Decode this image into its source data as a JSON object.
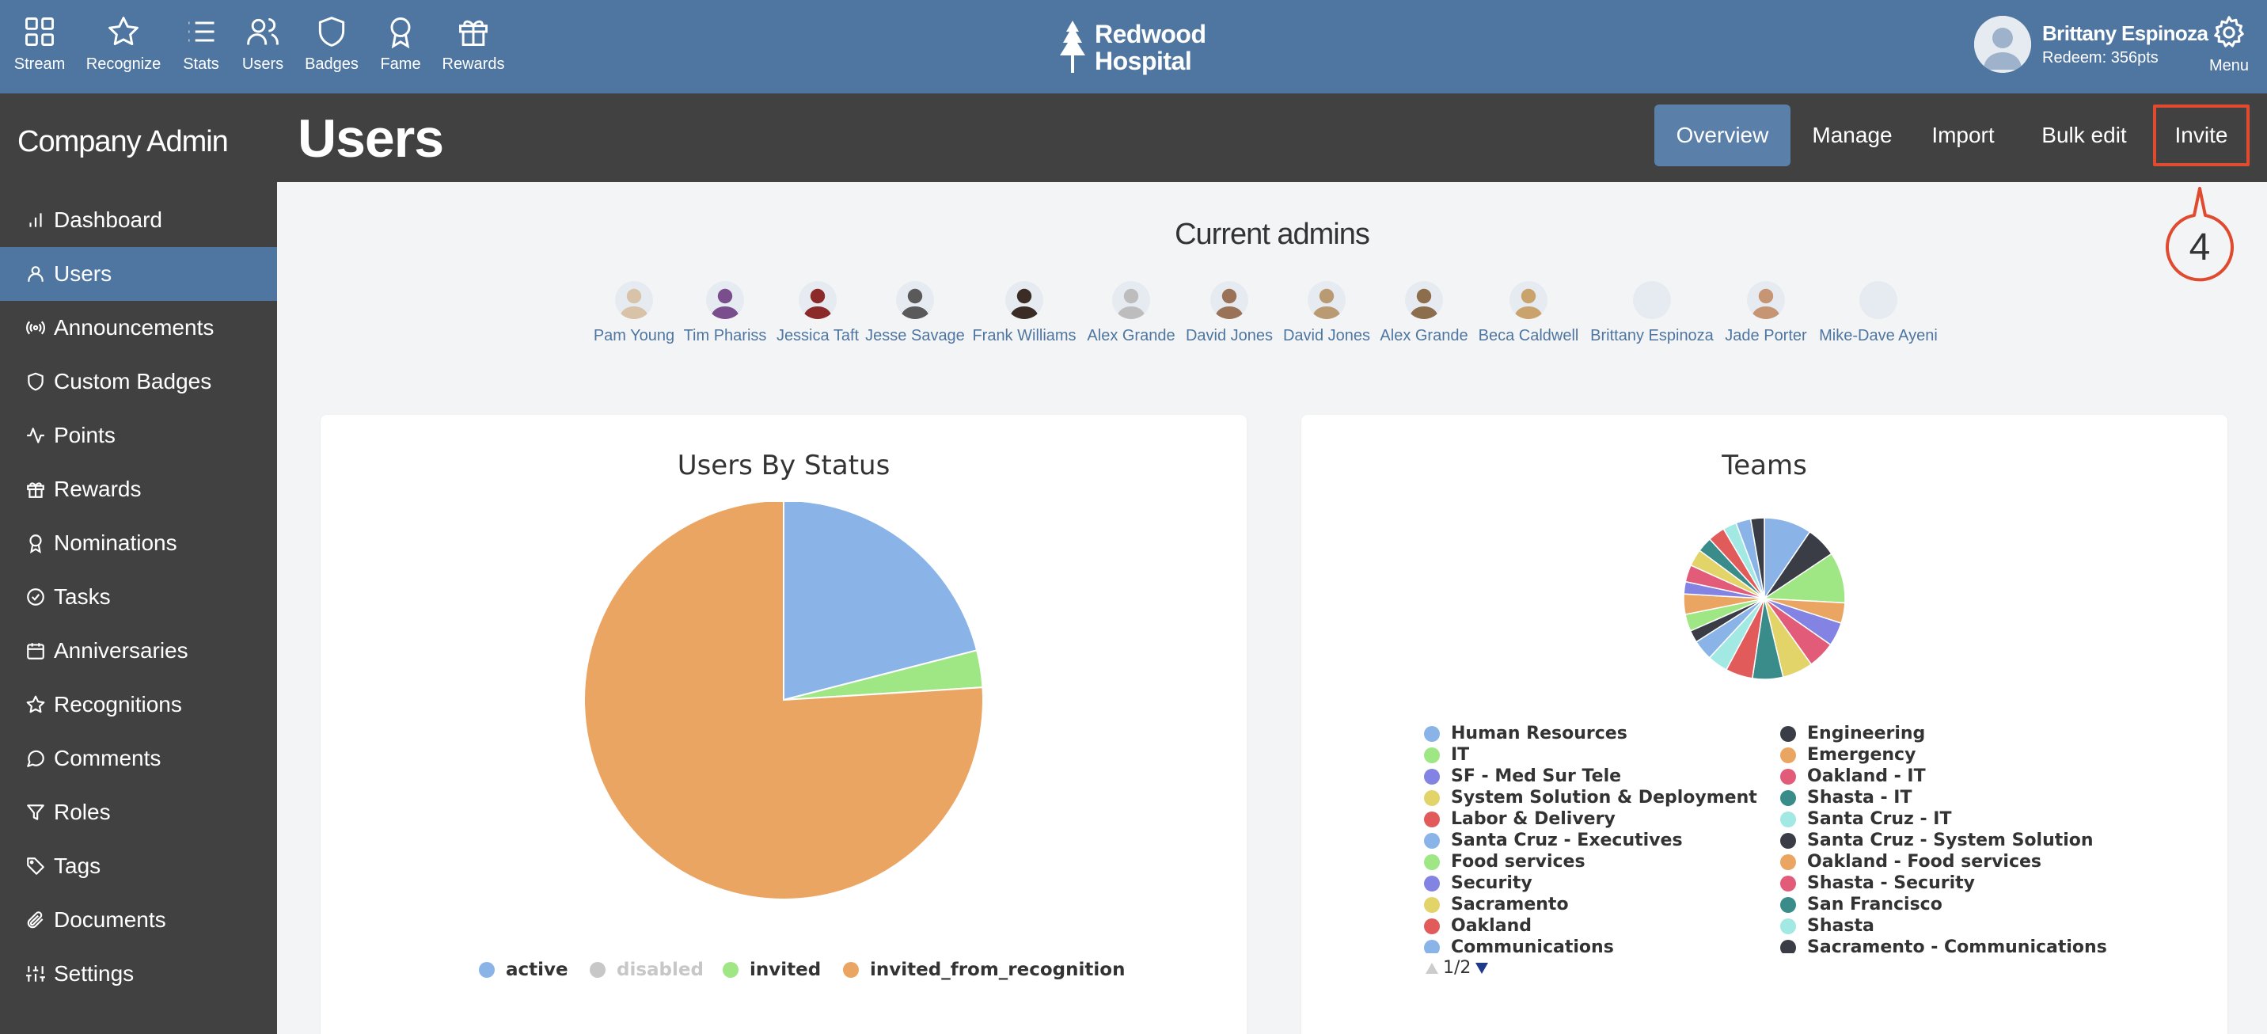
{
  "nav": [
    {
      "label": "Stream",
      "icon": "grid-icon"
    },
    {
      "label": "Recognize",
      "icon": "star-icon"
    },
    {
      "label": "Stats",
      "icon": "list-icon"
    },
    {
      "label": "Users",
      "icon": "users-icon"
    },
    {
      "label": "Badges",
      "icon": "shield-icon"
    },
    {
      "label": "Fame",
      "icon": "award-icon"
    },
    {
      "label": "Rewards",
      "icon": "gift-icon"
    }
  ],
  "brand": {
    "line1": "Redwood",
    "line2": "Hospital",
    "icon": "tree-icon"
  },
  "user": {
    "name": "Brittany Espinoza",
    "redeem": "Redeem: 356pts"
  },
  "menu": {
    "label": "Menu",
    "icon": "gear-icon"
  },
  "sidebar": {
    "title": "Company Admin",
    "items": [
      {
        "label": "Dashboard",
        "icon": "bar-chart-icon"
      },
      {
        "label": "Users",
        "icon": "user-icon",
        "active": true
      },
      {
        "label": "Announcements",
        "icon": "broadcast-icon"
      },
      {
        "label": "Custom Badges",
        "icon": "shield-icon"
      },
      {
        "label": "Points",
        "icon": "activity-icon"
      },
      {
        "label": "Rewards",
        "icon": "gift-icon"
      },
      {
        "label": "Nominations",
        "icon": "award-icon"
      },
      {
        "label": "Tasks",
        "icon": "check-circle-icon"
      },
      {
        "label": "Anniversaries",
        "icon": "calendar-icon"
      },
      {
        "label": "Recognitions",
        "icon": "star-icon"
      },
      {
        "label": "Comments",
        "icon": "comment-icon"
      },
      {
        "label": "Roles",
        "icon": "filter-icon"
      },
      {
        "label": "Tags",
        "icon": "tag-icon"
      },
      {
        "label": "Documents",
        "icon": "paperclip-icon"
      },
      {
        "label": "Settings",
        "icon": "sliders-icon"
      }
    ]
  },
  "header": {
    "title": "Users",
    "tabs": [
      {
        "label": "Overview",
        "active": true
      },
      {
        "label": "Manage"
      },
      {
        "label": "Import"
      },
      {
        "label": "Bulk edit"
      },
      {
        "label": "Invite",
        "highlighted": true
      }
    ]
  },
  "callout": {
    "number": "4",
    "color": "#e04a2e"
  },
  "admins": {
    "title": "Current admins",
    "people": [
      "Pam Young",
      "Tim Phariss",
      "Jessica Taft",
      "Jesse Savage",
      "Frank Williams",
      "Alex Grande",
      "David Jones",
      "David Jones",
      "Alex Grande",
      "Beca Caldwell",
      "Brittany Espinoza",
      "Jade Porter",
      "Mike-Dave Ayeni"
    ]
  },
  "chart_data": [
    {
      "type": "pie",
      "title": "Users By Status",
      "categories": [
        "active",
        "disabled",
        "invited",
        "invited_from_recognition"
      ],
      "values": [
        21,
        0,
        3,
        76
      ],
      "colors": [
        "#8ab4e8",
        "#c7c7c7",
        "#9fe784",
        "#eba563"
      ],
      "legend_position": "bottom",
      "disabled_legend": [
        "disabled"
      ]
    },
    {
      "type": "pie",
      "title": "Teams",
      "legend_position": "bottom",
      "categories": [
        "Human Resources",
        "Engineering",
        "IT",
        "Emergency",
        "SF - Med Sur Tele",
        "Oakland - IT",
        "System Solution & Deployment",
        "Shasta - IT",
        "Labor & Delivery",
        "Santa Cruz - IT",
        "Santa Cruz - Executives",
        "Santa Cruz - System Solution",
        "Food services",
        "Oakland - Food services",
        "Security",
        "Shasta - Security",
        "Sacramento",
        "San Francisco",
        "Oakland",
        "Shasta",
        "Communications",
        "Sacramento - Communications"
      ],
      "values": [
        7,
        4.5,
        7.5,
        3,
        3.5,
        4,
        4.5,
        4.5,
        4,
        3,
        3,
        1.8,
        2.5,
        3,
        1.8,
        2.5,
        2.5,
        2.2,
        2.5,
        2,
        2.2,
        2
      ],
      "colors": [
        "#8ab4e8",
        "#3a3d45",
        "#9fe784",
        "#eba563",
        "#8383e3",
        "#e25b78",
        "#e3d46a",
        "#3a8c8a",
        "#e25b5b",
        "#a2e9e3",
        "#8ab4e8",
        "#3a3d45",
        "#9fe784",
        "#eba563",
        "#8383e3",
        "#e25b78",
        "#e3d46a",
        "#3a8c8a",
        "#e25b5b",
        "#a2e9e3",
        "#8ab4e8",
        "#3a3d45"
      ],
      "page": "1/2"
    }
  ]
}
